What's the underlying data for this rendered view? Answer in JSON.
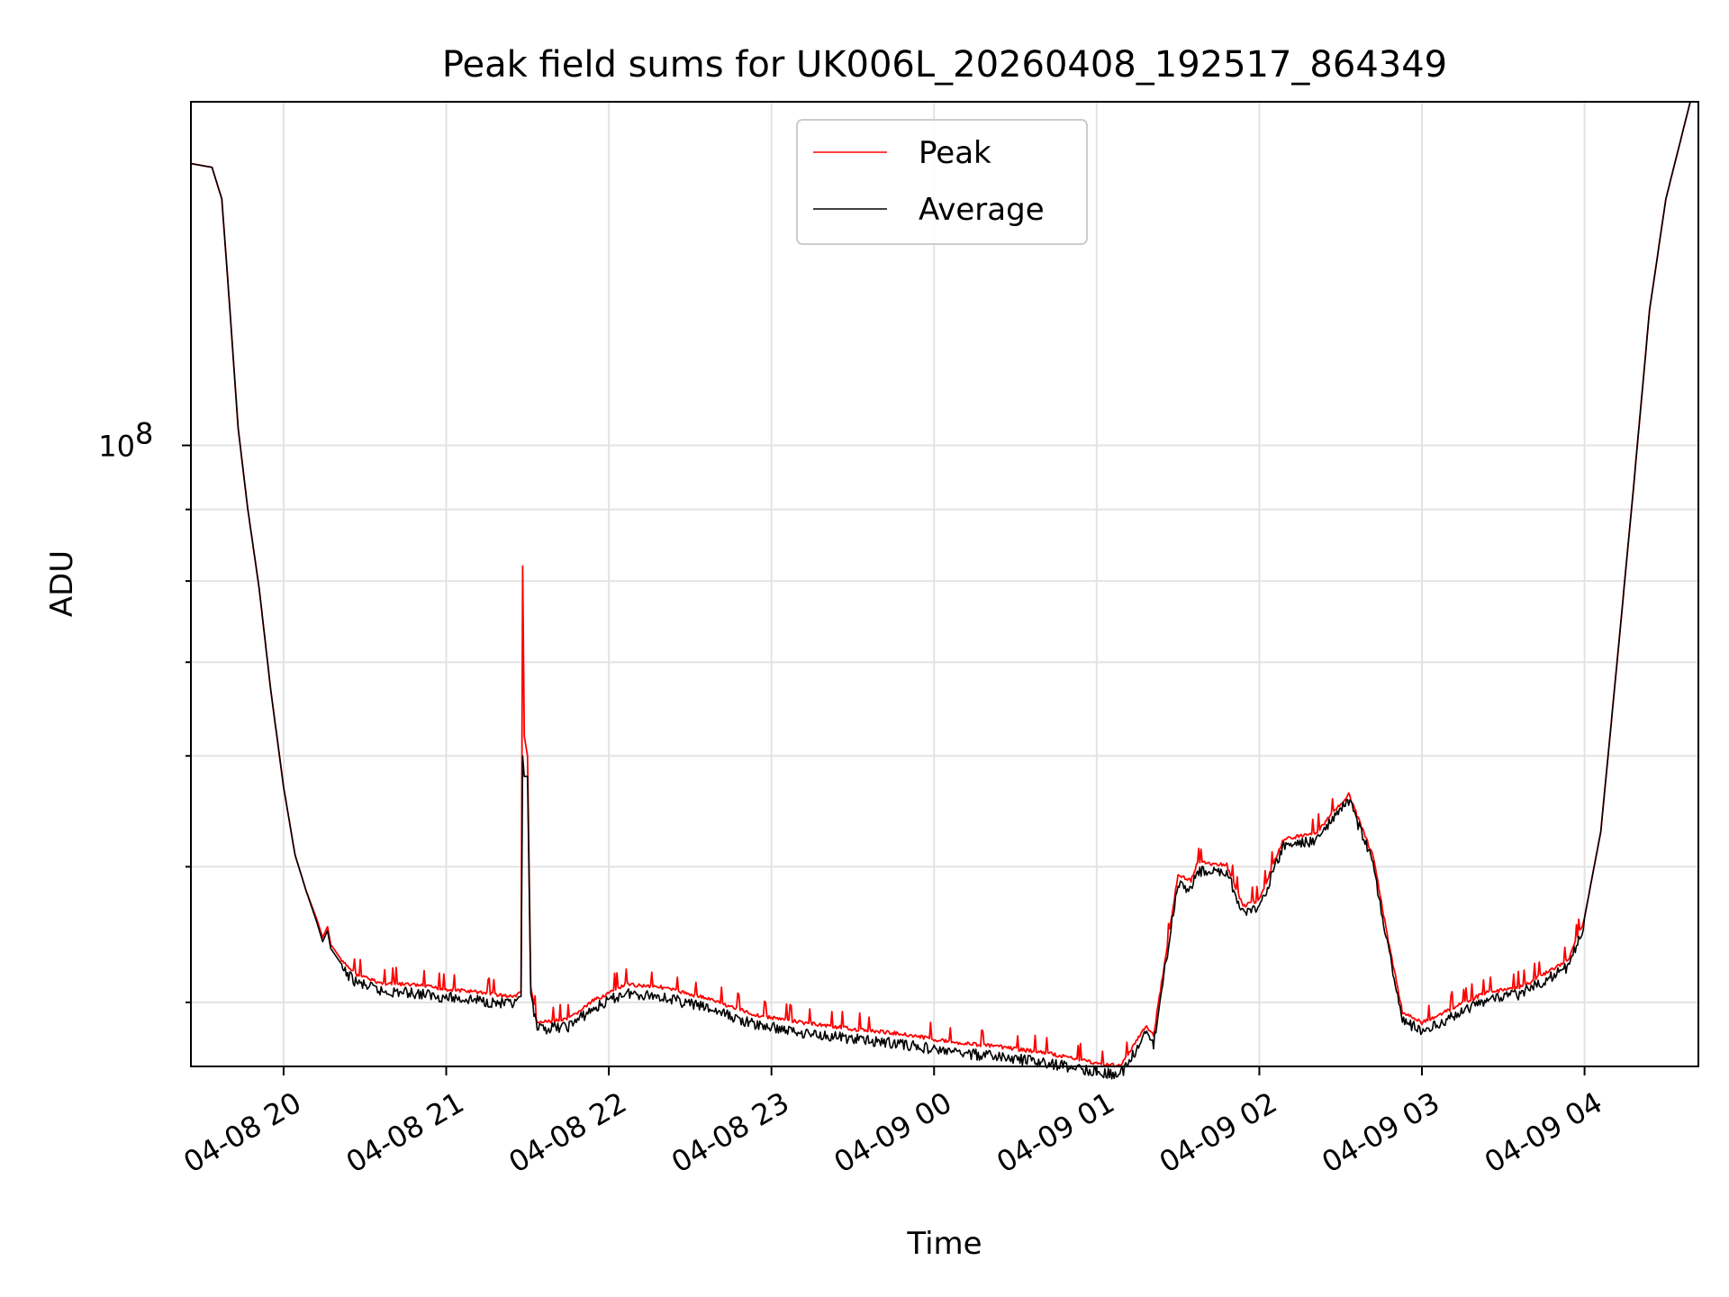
{
  "chart_data": {
    "type": "line",
    "title": "Peak field sums for UK006L_20260408_192517_864349",
    "xlabel": "Time",
    "ylabel": "ADU",
    "y_scale": "log",
    "ylim": [
      36000000,
      176000000
    ],
    "xlim": [
      -0.57,
      8.7
    ],
    "grid": true,
    "legend_position": "top-center",
    "x_ticks": [
      {
        "value": 0,
        "label": "04-08 20"
      },
      {
        "value": 1,
        "label": "04-08 21"
      },
      {
        "value": 2,
        "label": "04-08 22"
      },
      {
        "value": 3,
        "label": "04-08 23"
      },
      {
        "value": 4,
        "label": "04-09 00"
      },
      {
        "value": 5,
        "label": "04-09 01"
      },
      {
        "value": 6,
        "label": "04-09 02"
      },
      {
        "value": 7,
        "label": "04-09 03"
      },
      {
        "value": 8,
        "label": "04-09 04"
      }
    ],
    "y_major_ticks": [
      {
        "value": 100000000,
        "base": "10",
        "exp": "8"
      }
    ],
    "y_minor_ticks": [
      40000000,
      50000000,
      60000000,
      70000000,
      80000000,
      90000000,
      200000000
    ],
    "x_unit_note": "hours since 04-08 20:00",
    "series": [
      {
        "name": "Peak",
        "color": "#ff0000",
        "points": [
          [
            -0.57,
            159000000
          ],
          [
            -0.44,
            158000000
          ],
          [
            -0.38,
            150000000
          ],
          [
            -0.33,
            125000000
          ],
          [
            -0.28,
            103000000
          ],
          [
            -0.22,
            90000000
          ],
          [
            -0.15,
            79000000
          ],
          [
            -0.08,
            67000000
          ],
          [
            0.0,
            57000000
          ],
          [
            0.07,
            51000000
          ],
          [
            0.14,
            48000000
          ],
          [
            0.2,
            46000000
          ],
          [
            0.24,
            44500000
          ],
          [
            0.27,
            45300000
          ],
          [
            0.29,
            44000000
          ],
          [
            0.35,
            43000000
          ],
          [
            0.45,
            42000000
          ],
          [
            0.6,
            41400000
          ],
          [
            0.8,
            41300000
          ],
          [
            1.0,
            41000000
          ],
          [
            1.2,
            40800000
          ],
          [
            1.4,
            40500000
          ],
          [
            1.46,
            40700000
          ],
          [
            1.47,
            82000000
          ],
          [
            1.48,
            62000000
          ],
          [
            1.5,
            60000000
          ],
          [
            1.52,
            41000000
          ],
          [
            1.56,
            38800000
          ],
          [
            1.75,
            39000000
          ],
          [
            1.9,
            40200000
          ],
          [
            2.1,
            41300000
          ],
          [
            2.3,
            41200000
          ],
          [
            2.6,
            40400000
          ],
          [
            2.9,
            39300000
          ],
          [
            3.2,
            38800000
          ],
          [
            3.5,
            38400000
          ],
          [
            3.8,
            38100000
          ],
          [
            4.1,
            37600000
          ],
          [
            4.4,
            37300000
          ],
          [
            4.7,
            36900000
          ],
          [
            4.9,
            36500000
          ],
          [
            5.05,
            36200000
          ],
          [
            5.15,
            36200000
          ],
          [
            5.2,
            36900000
          ],
          [
            5.3,
            38600000
          ],
          [
            5.35,
            38000000
          ],
          [
            5.42,
            43000000
          ],
          [
            5.5,
            49500000
          ],
          [
            5.58,
            49000000
          ],
          [
            5.62,
            50500000
          ],
          [
            5.8,
            50300000
          ],
          [
            5.9,
            47000000
          ],
          [
            6.0,
            47500000
          ],
          [
            6.15,
            52500000
          ],
          [
            6.35,
            53000000
          ],
          [
            6.55,
            56500000
          ],
          [
            6.7,
            51000000
          ],
          [
            6.8,
            44000000
          ],
          [
            6.88,
            39500000
          ],
          [
            7.0,
            38800000
          ],
          [
            7.2,
            39800000
          ],
          [
            7.4,
            40800000
          ],
          [
            7.6,
            41100000
          ],
          [
            7.9,
            43000000
          ],
          [
            8.0,
            46000000
          ],
          [
            8.1,
            53000000
          ],
          [
            8.2,
            70000000
          ],
          [
            8.3,
            93000000
          ],
          [
            8.4,
            125000000
          ],
          [
            8.5,
            150000000
          ],
          [
            8.65,
            176000000
          ]
        ]
      },
      {
        "name": "Average",
        "color": "#000000",
        "points": [
          [
            -0.57,
            159000000
          ],
          [
            -0.44,
            158000000
          ],
          [
            -0.38,
            150000000
          ],
          [
            -0.33,
            125000000
          ],
          [
            -0.28,
            103000000
          ],
          [
            -0.22,
            90000000
          ],
          [
            -0.15,
            79000000
          ],
          [
            -0.08,
            67000000
          ],
          [
            0.0,
            57000000
          ],
          [
            0.07,
            51000000
          ],
          [
            0.14,
            48000000
          ],
          [
            0.2,
            45800000
          ],
          [
            0.24,
            44200000
          ],
          [
            0.27,
            45000000
          ],
          [
            0.29,
            43700000
          ],
          [
            0.35,
            42700000
          ],
          [
            0.45,
            41700000
          ],
          [
            0.6,
            41100000
          ],
          [
            0.8,
            41000000
          ],
          [
            1.0,
            40700000
          ],
          [
            1.2,
            40500000
          ],
          [
            1.4,
            40200000
          ],
          [
            1.46,
            40400000
          ],
          [
            1.47,
            60000000
          ],
          [
            1.48,
            58000000
          ],
          [
            1.5,
            58000000
          ],
          [
            1.52,
            40600000
          ],
          [
            1.56,
            38600000
          ],
          [
            1.75,
            38800000
          ],
          [
            1.9,
            39900000
          ],
          [
            2.1,
            41000000
          ],
          [
            2.3,
            40800000
          ],
          [
            2.6,
            40000000
          ],
          [
            2.9,
            38900000
          ],
          [
            3.2,
            38400000
          ],
          [
            3.5,
            38000000
          ],
          [
            3.8,
            37700000
          ],
          [
            4.1,
            37200000
          ],
          [
            4.4,
            36900000
          ],
          [
            4.7,
            36500000
          ],
          [
            4.9,
            36200000
          ],
          [
            5.05,
            35900000
          ],
          [
            5.15,
            35900000
          ],
          [
            5.2,
            36600000
          ],
          [
            5.3,
            38300000
          ],
          [
            5.35,
            37700000
          ],
          [
            5.42,
            42700000
          ],
          [
            5.5,
            49200000
          ],
          [
            5.58,
            48600000
          ],
          [
            5.62,
            50100000
          ],
          [
            5.8,
            50000000
          ],
          [
            5.9,
            46700000
          ],
          [
            6.0,
            47200000
          ],
          [
            6.15,
            52200000
          ],
          [
            6.35,
            52700000
          ],
          [
            6.55,
            56300000
          ],
          [
            6.7,
            50700000
          ],
          [
            6.8,
            43700000
          ],
          [
            6.88,
            39200000
          ],
          [
            7.0,
            38500000
          ],
          [
            7.2,
            39500000
          ],
          [
            7.4,
            40600000
          ],
          [
            7.6,
            40900000
          ],
          [
            7.9,
            42800000
          ],
          [
            8.0,
            46000000
          ],
          [
            8.1,
            53000000
          ],
          [
            8.2,
            70000000
          ],
          [
            8.3,
            93000000
          ],
          [
            8.4,
            125000000
          ],
          [
            8.5,
            150000000
          ],
          [
            8.65,
            176000000
          ]
        ]
      }
    ]
  }
}
